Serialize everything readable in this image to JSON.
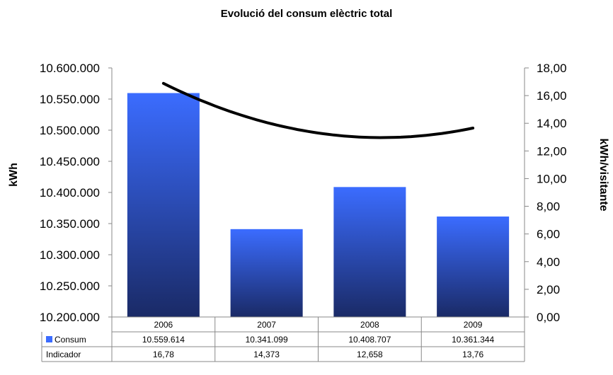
{
  "chart_data": {
    "type": "bar",
    "title": "Evolució del consum elèctric total",
    "categories": [
      "2006",
      "2007",
      "2008",
      "2009"
    ],
    "series": [
      {
        "name": "Consum",
        "axis": "left",
        "kind": "bar",
        "values": [
          10559614,
          10341099,
          10408707,
          10361344
        ],
        "labels": [
          "10.559.614",
          "10.341.099",
          "10.408.707",
          "10.361.344"
        ],
        "color_top": "#3b6cff",
        "color_bottom": "#1a2a66"
      },
      {
        "name": "Indicador",
        "axis": "right",
        "kind": "trendline",
        "values": [
          16.78,
          14.373,
          12.658,
          13.76
        ],
        "labels": [
          "16,78",
          "14,373",
          "12,658",
          "13,76"
        ],
        "color": "#000000"
      }
    ],
    "ylabel": "kWh",
    "y2label": "kWh/visitante",
    "ylim": [
      10200000,
      10600000
    ],
    "y2lim": [
      0,
      18
    ],
    "yticks": [
      "10.200.000",
      "10.250.000",
      "10.300.000",
      "10.350.000",
      "10.400.000",
      "10.450.000",
      "10.500.000",
      "10.550.000",
      "10.600.000"
    ],
    "y2ticks": [
      "0,00",
      "2,00",
      "4,00",
      "6,00",
      "8,00",
      "10,00",
      "12,00",
      "14,00",
      "16,00",
      "18,00"
    ],
    "grid": false,
    "legend": "data-table"
  }
}
